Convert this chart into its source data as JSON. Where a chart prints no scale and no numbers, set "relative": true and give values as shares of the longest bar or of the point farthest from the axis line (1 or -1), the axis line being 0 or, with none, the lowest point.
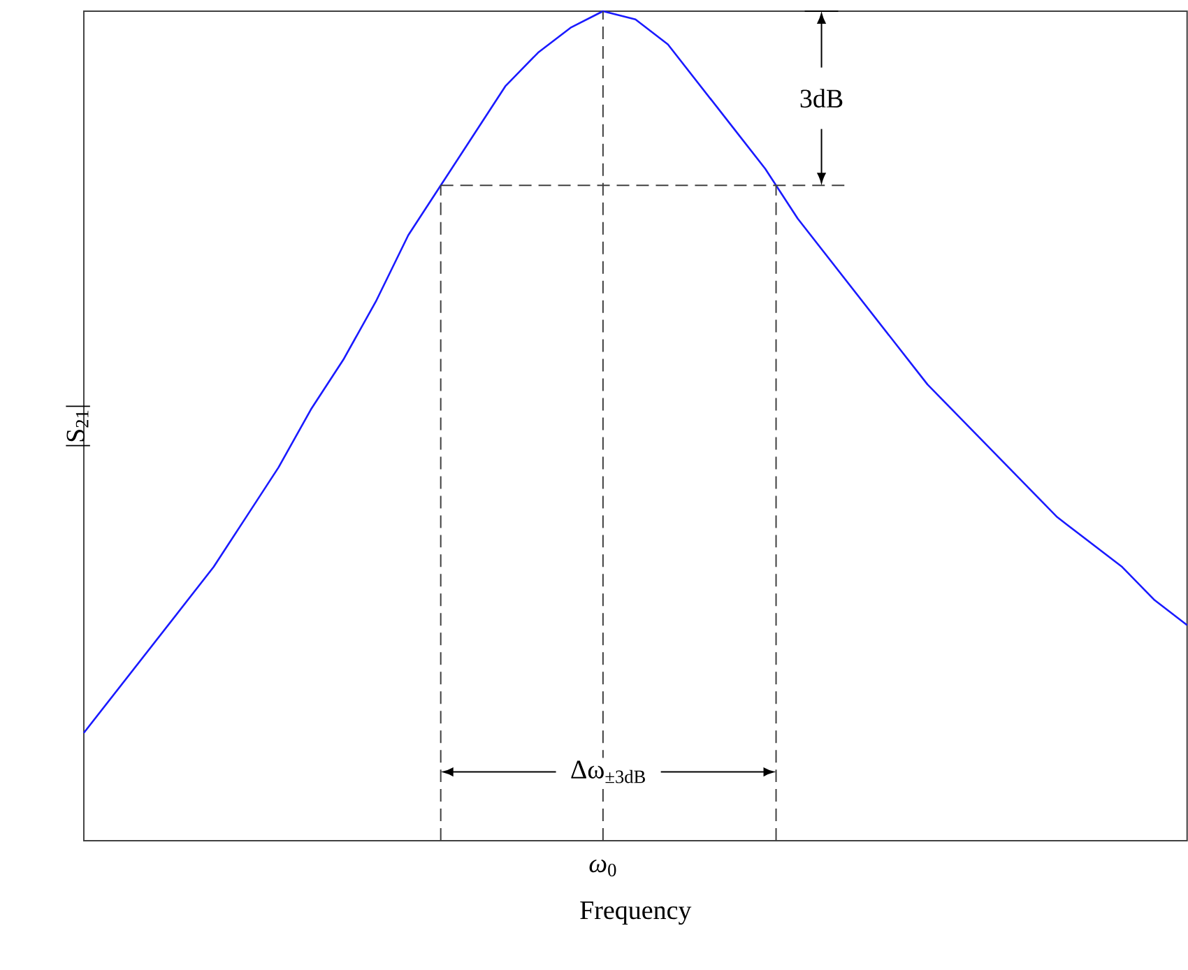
{
  "chart_data": {
    "type": "line",
    "relative": true,
    "xlabel": "Frequency",
    "ylabel": "|S$_{21}$|",
    "categories": [
      null,
      null,
      null,
      null,
      null,
      null,
      null,
      null,
      null,
      null,
      null,
      null,
      null,
      null,
      null,
      null,
      null,
      null,
      null,
      null,
      null,
      null,
      null,
      null,
      null,
      null,
      null,
      null,
      null,
      null,
      null,
      null,
      null,
      null,
      null
    ],
    "series": [
      {
        "color": "#1a1aff",
        "values": [
          0.13,
          0.18,
          0.23,
          0.28,
          0.33,
          0.39,
          0.45,
          0.52,
          0.58,
          0.65,
          0.73,
          0.79,
          0.85,
          0.91,
          0.95,
          0.98,
          1,
          0.99,
          0.96,
          0.91,
          0.86,
          0.81,
          0.75,
          0.7,
          0.65,
          0.6,
          0.55,
          0.51,
          0.47,
          0.43,
          0.39,
          0.36,
          0.33,
          0.29,
          0.26
        ]
      }
    ],
    "ref_lines": [
      {
        "axis": "y",
        "value": 0.79,
        "color": "#404040",
        "line_style": "dashed"
      }
    ],
    "annotations": [
      "3dB",
      "Δω$_{±3dB}$",
      "*ω*$_{0}$"
    ],
    "marker": "none",
    "line_style": "solid"
  }
}
